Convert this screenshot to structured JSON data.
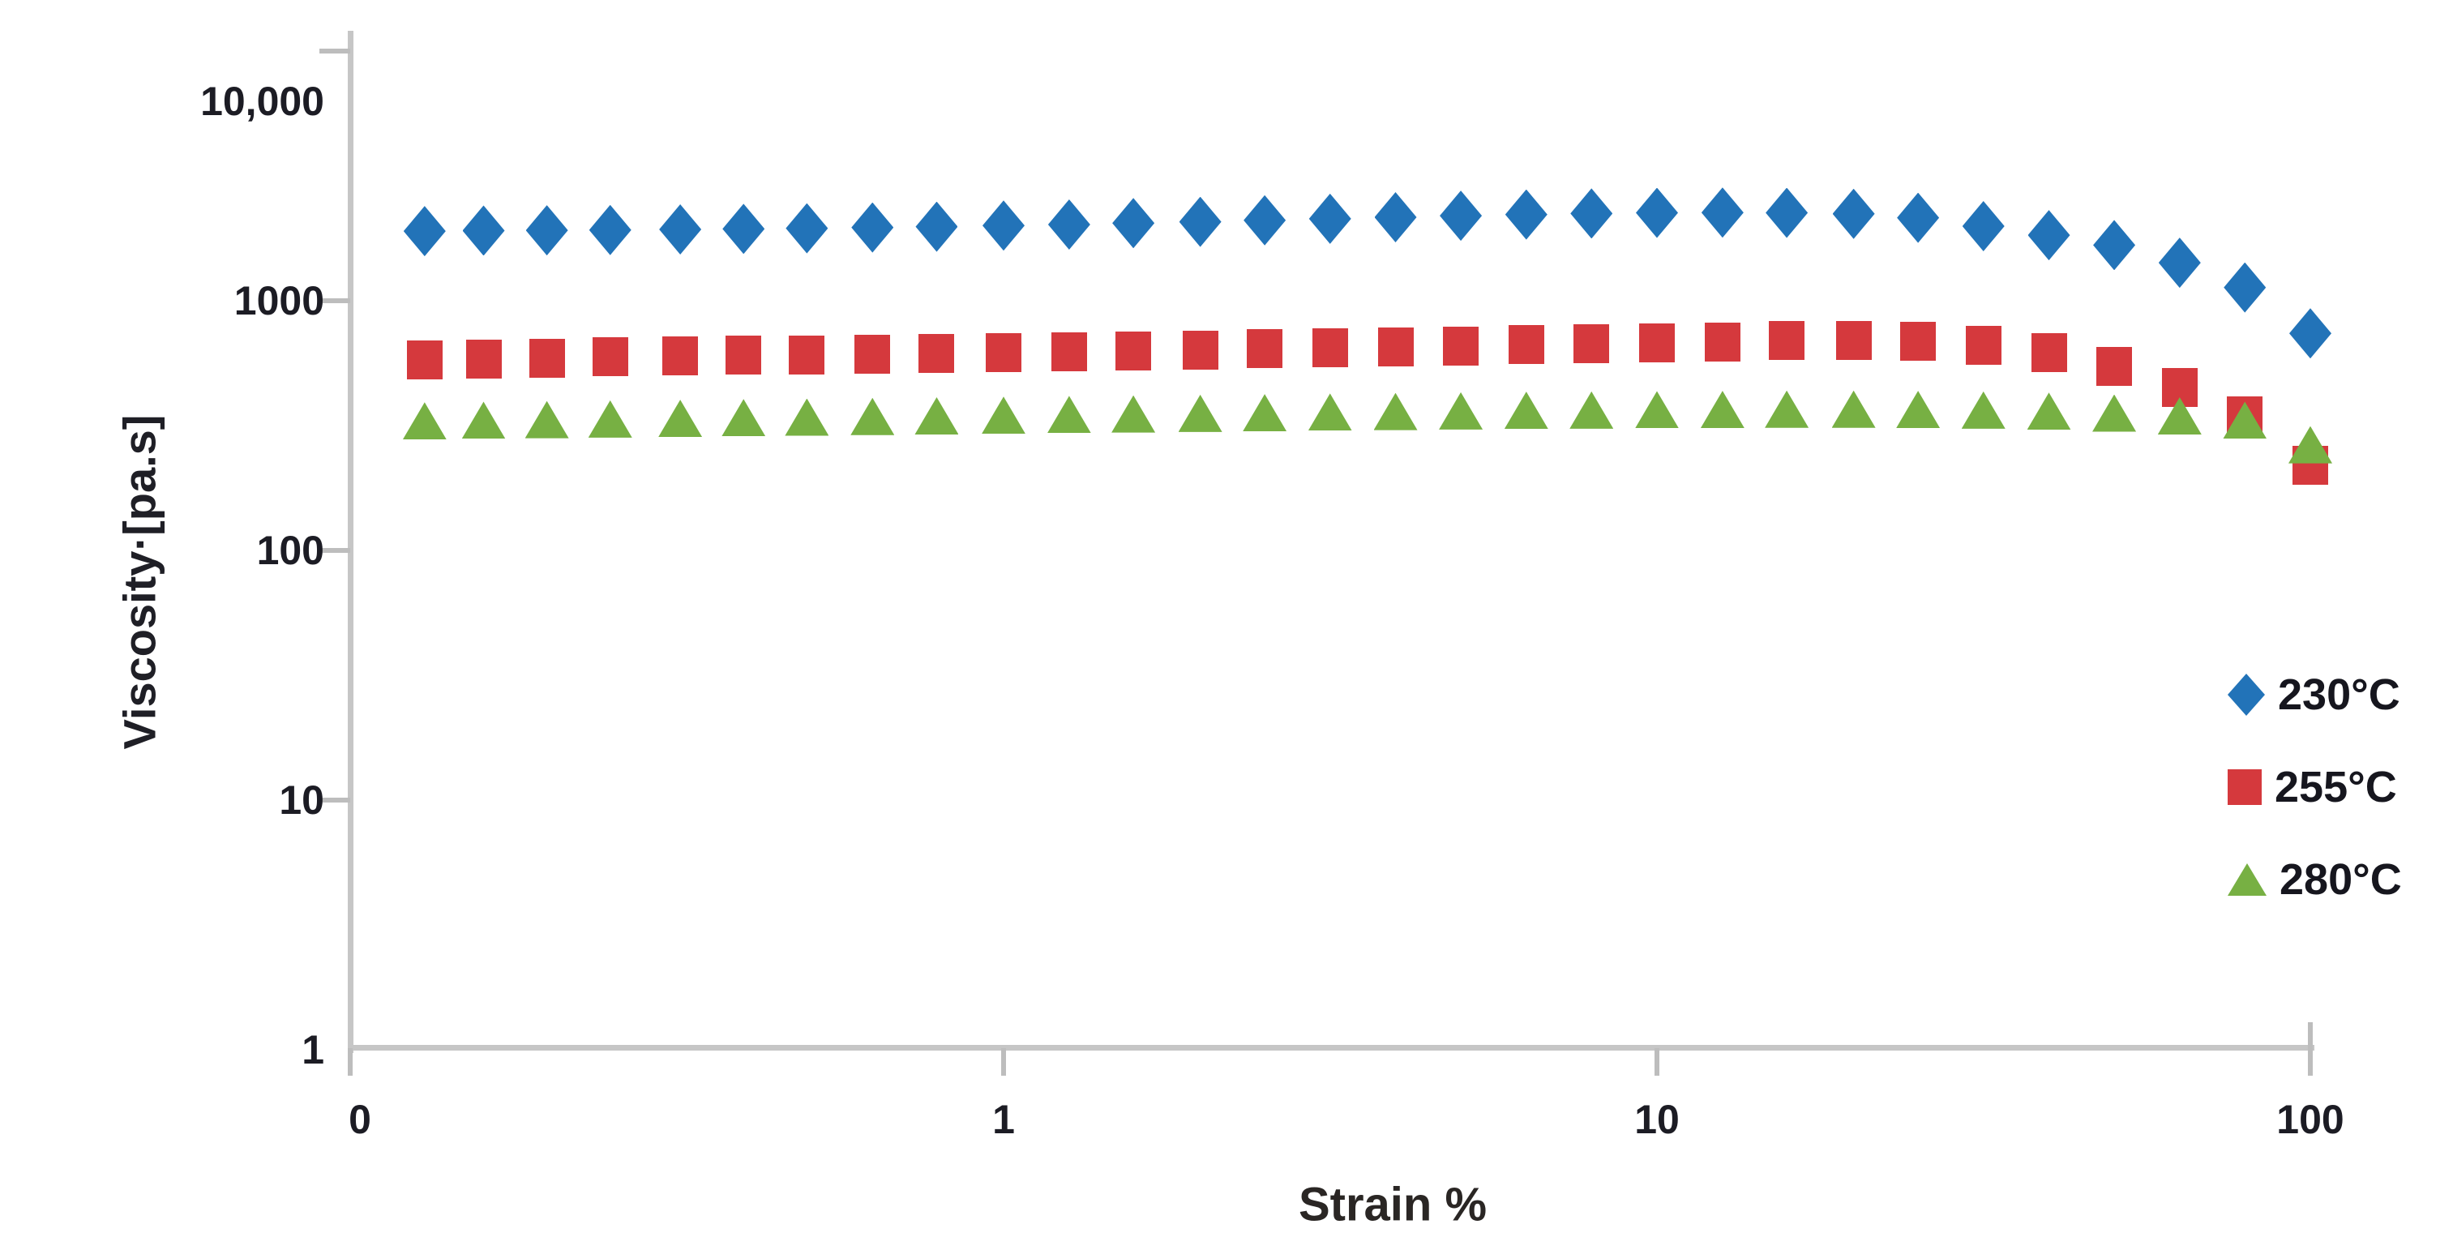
{
  "chart_data": {
    "type": "scatter",
    "title": "",
    "xlabel": "Strain %",
    "ylabel": "Viscosity·[pa.s]",
    "x_scale": "log",
    "y_scale": "log",
    "xlim": [
      0.1,
      100
    ],
    "ylim": [
      1,
      10000
    ],
    "grid": false,
    "legend_position": "right",
    "x_ticks": [
      {
        "value": 0.1,
        "label": "0"
      },
      {
        "value": 1,
        "label": "1"
      },
      {
        "value": 10,
        "label": "10"
      },
      {
        "value": 100,
        "label": "100"
      }
    ],
    "y_ticks": [
      {
        "value": 1,
        "label": "1"
      },
      {
        "value": 10,
        "label": "10"
      },
      {
        "value": 100,
        "label": "100"
      },
      {
        "value": 1000,
        "label": "1000"
      },
      {
        "value": 10000,
        "label": "10,000"
      }
    ],
    "x": [
      0.13,
      0.16,
      0.2,
      0.25,
      0.32,
      0.4,
      0.5,
      0.63,
      0.79,
      1.0,
      1.26,
      1.58,
      2.0,
      2.51,
      3.16,
      3.98,
      5.01,
      6.31,
      7.94,
      10.0,
      12.6,
      15.8,
      20.0,
      25.1,
      31.6,
      39.8,
      50.1,
      63.1,
      79.4,
      100.0
    ],
    "series": [
      {
        "name": "230°C",
        "marker": "diamond",
        "color": "#2273B8",
        "values": [
          1900,
          1910,
          1915,
          1920,
          1930,
          1940,
          1950,
          1965,
          1980,
          2000,
          2020,
          2045,
          2070,
          2100,
          2130,
          2160,
          2190,
          2215,
          2235,
          2250,
          2255,
          2250,
          2230,
          2150,
          1990,
          1830,
          1670,
          1420,
          1130,
          740
        ]
      },
      {
        "name": "255°C",
        "marker": "square",
        "color": "#D5393D",
        "values": [
          580,
          585,
          590,
          595,
          600,
          605,
          608,
          612,
          616,
          620,
          625,
          630,
          636,
          642,
          648,
          654,
          660,
          666,
          672,
          678,
          685,
          692,
          695,
          688,
          665,
          620,
          545,
          450,
          345,
          220
        ]
      },
      {
        "name": "280°C",
        "marker": "triangle",
        "color": "#77B043",
        "values": [
          330,
          332,
          334,
          336,
          338,
          340,
          342,
          344,
          346,
          348,
          350,
          352,
          354,
          356,
          358,
          360,
          362,
          364,
          365,
          366,
          367,
          368,
          368,
          367,
          365,
          361,
          355,
          346,
          332,
          265
        ]
      }
    ]
  }
}
